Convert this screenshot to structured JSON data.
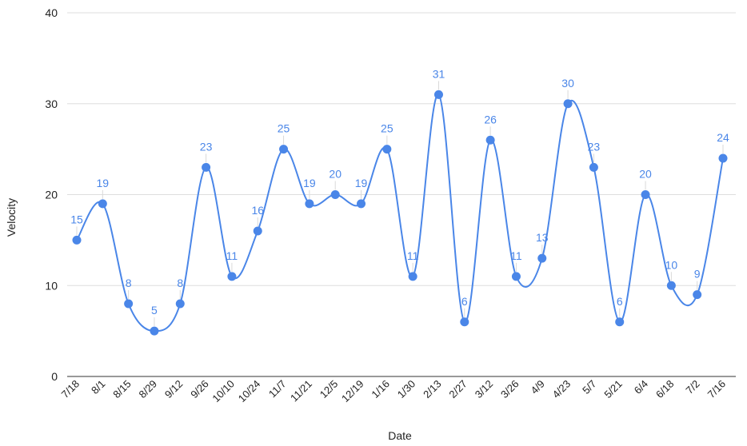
{
  "chart_data": {
    "type": "line",
    "title": "",
    "xlabel": "Date",
    "ylabel": "Velocity",
    "ylim": [
      0,
      40
    ],
    "yticks": [
      0,
      10,
      20,
      30,
      40
    ],
    "grid": true,
    "smooth": true,
    "color": "#4a86e8",
    "categories": [
      "7/18",
      "8/1",
      "8/15",
      "8/29",
      "9/12",
      "9/26",
      "10/10",
      "10/24",
      "11/7",
      "11/21",
      "12/5",
      "12/19",
      "1/16",
      "1/30",
      "2/13",
      "2/27",
      "3/12",
      "3/26",
      "4/9",
      "4/23",
      "5/7",
      "5/21",
      "6/4",
      "6/18",
      "7/2",
      "7/16"
    ],
    "series": [
      {
        "values": [
          15,
          19,
          8,
          5,
          8,
          23,
          11,
          16,
          25,
          19,
          20,
          19,
          25,
          11,
          31,
          6,
          26,
          11,
          13,
          30,
          23,
          6,
          20,
          10,
          9,
          24
        ]
      }
    ]
  }
}
